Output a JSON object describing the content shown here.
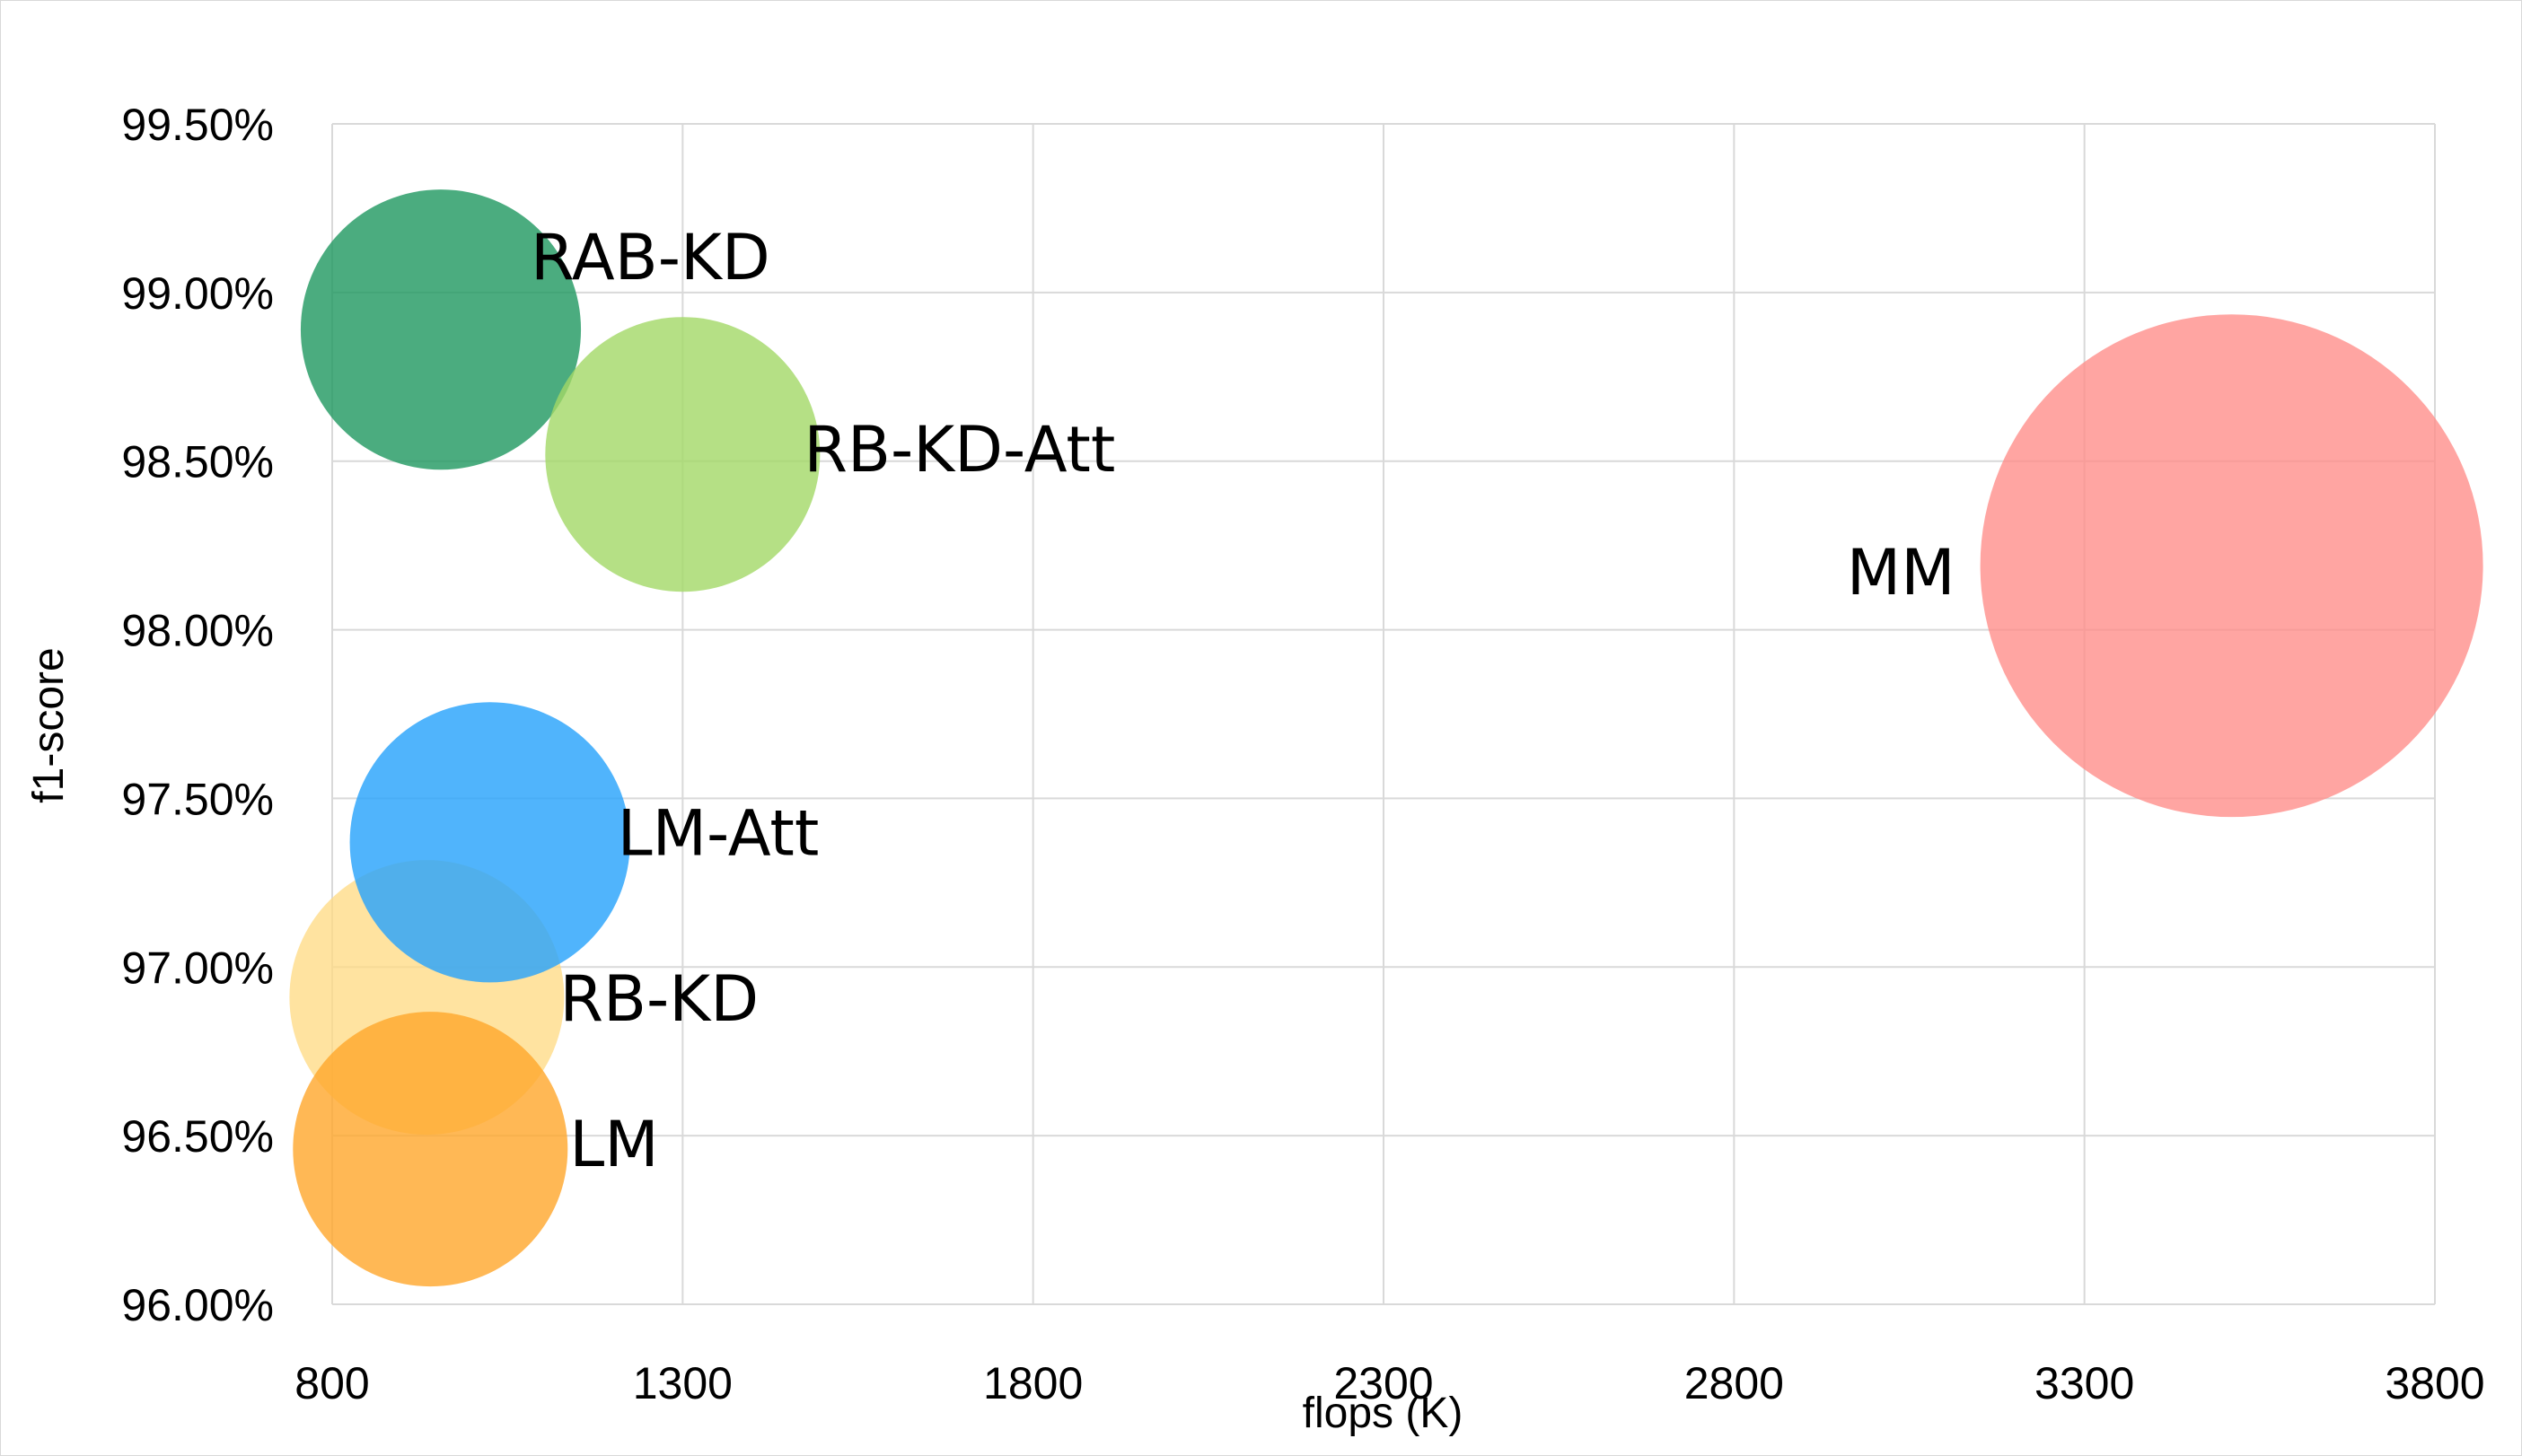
{
  "chart_data": {
    "type": "bubble",
    "title": "",
    "xlabel": "flops (K)",
    "ylabel": "f1-score",
    "xlim": [
      800,
      3800
    ],
    "ylim": [
      0.96,
      0.995
    ],
    "x_ticks": [
      800,
      1300,
      1800,
      2300,
      2800,
      3300,
      3800
    ],
    "x_tick_labels": [
      "800",
      "1300",
      "1800",
      "2300",
      "2800",
      "3300",
      "3800"
    ],
    "y_ticks": [
      0.96,
      0.965,
      0.97,
      0.975,
      0.98,
      0.985,
      0.99,
      0.995
    ],
    "y_tick_labels": [
      "96.00%",
      "96.50%",
      "97.00%",
      "97.50%",
      "98.00%",
      "98.50%",
      "99.00%",
      "99.50%"
    ],
    "grid": true,
    "legend": "none",
    "points": [
      {
        "label": "RB-KD",
        "x": 935,
        "y": 0.9691,
        "size": 1.0,
        "color": "#FFD980",
        "opacity": 0.75
      },
      {
        "label": "LM",
        "x": 940,
        "y": 0.9646,
        "size": 1.0,
        "color": "#FFA62B",
        "opacity": 0.8
      },
      {
        "label": "LM-Att",
        "x": 1025,
        "y": 0.9737,
        "size": 1.02,
        "color": "#2AA4FB",
        "opacity": 0.82
      },
      {
        "label": "RAB-KD",
        "x": 955,
        "y": 0.9889,
        "size": 1.02,
        "color": "#239A63",
        "opacity": 0.82
      },
      {
        "label": "RB-KD-Att",
        "x": 1300,
        "y": 0.9852,
        "size": 1.0,
        "color": "#A2D866",
        "opacity": 0.8
      },
      {
        "label": "MM",
        "x": 3510,
        "y": 0.9819,
        "size": 1.83,
        "color": "#FF8C88",
        "opacity": 0.78
      }
    ]
  }
}
